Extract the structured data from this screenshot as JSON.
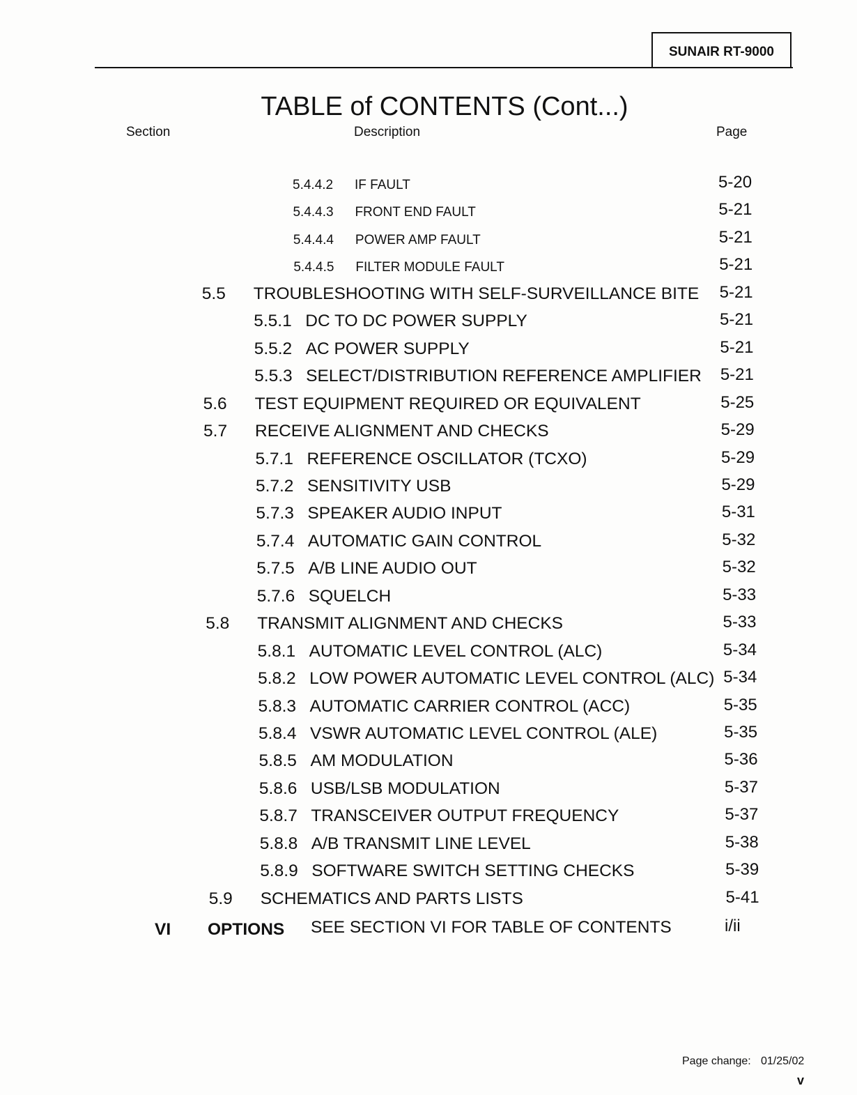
{
  "header": {
    "model": "SUNAIR RT-9000"
  },
  "title": "TABLE  of  CONTENTS (Cont...)",
  "columns": {
    "section": "Section",
    "description": "Description",
    "page": "Page"
  },
  "entries": [
    {
      "level": 3,
      "number": "5.4.4.2",
      "title": "IF FAULT",
      "page": "5-20"
    },
    {
      "level": 3,
      "number": "5.4.4.3",
      "title": "FRONT END FAULT",
      "page": "5-21"
    },
    {
      "level": 3,
      "number": "5.4.4.4",
      "title": "POWER AMP FAULT",
      "page": "5-21"
    },
    {
      "level": 3,
      "number": "5.4.4.5",
      "title": "FILTER MODULE FAULT",
      "page": "5-21"
    },
    {
      "level": 1,
      "number": "5.5",
      "title": "TROUBLESHOOTING WITH SELF-SURVEILLANCE BITE",
      "page": "5-21"
    },
    {
      "level": 2,
      "number": "5.5.1",
      "title": "DC TO DC POWER SUPPLY",
      "page": "5-21"
    },
    {
      "level": 2,
      "number": "5.5.2",
      "title": "AC POWER SUPPLY",
      "page": "5-21"
    },
    {
      "level": 2,
      "number": "5.5.3",
      "title": "SELECT/DISTRIBUTION REFERENCE AMPLIFIER",
      "page": "5-21"
    },
    {
      "level": 1,
      "number": "5.6",
      "title": "TEST EQUIPMENT REQUIRED OR EQUIVALENT",
      "page": "5-25"
    },
    {
      "level": 1,
      "number": "5.7",
      "title": "RECEIVE ALIGNMENT AND CHECKS",
      "page": "5-29"
    },
    {
      "level": 2,
      "number": "5.7.1",
      "title": "REFERENCE OSCILLATOR (TCXO)",
      "page": "5-29"
    },
    {
      "level": 2,
      "number": "5.7.2",
      "title": "SENSITIVITY USB",
      "page": "5-29"
    },
    {
      "level": 2,
      "number": "5.7.3",
      "title": "SPEAKER AUDIO INPUT",
      "page": "5-31"
    },
    {
      "level": 2,
      "number": "5.7.4",
      "title": "AUTOMATIC GAIN CONTROL",
      "page": "5-32"
    },
    {
      "level": 2,
      "number": "5.7.5",
      "title": "A/B LINE AUDIO OUT",
      "page": "5-32"
    },
    {
      "level": 2,
      "number": "5.7.6",
      "title": "SQUELCH",
      "page": "5-33"
    },
    {
      "level": 1,
      "number": "5.8",
      "title": "TRANSMIT ALIGNMENT AND CHECKS",
      "page": "5-33"
    },
    {
      "level": 2,
      "number": "5.8.1",
      "title": "AUTOMATIC LEVEL CONTROL (ALC)",
      "page": "5-34"
    },
    {
      "level": 2,
      "number": "5.8.2",
      "title": "LOW POWER AUTOMATIC LEVEL CONTROL (ALC)",
      "page": "5-34"
    },
    {
      "level": 2,
      "number": "5.8.3",
      "title": "AUTOMATIC CARRIER CONTROL (ACC)",
      "page": "5-35"
    },
    {
      "level": 2,
      "number": "5.8.4",
      "title": "VSWR AUTOMATIC LEVEL CONTROL (ALE)",
      "page": "5-35"
    },
    {
      "level": 2,
      "number": "5.8.5",
      "title": "AM MODULATION",
      "page": "5-36"
    },
    {
      "level": 2,
      "number": "5.8.6",
      "title": "USB/LSB MODULATION",
      "page": "5-37"
    },
    {
      "level": 2,
      "number": "5.8.7",
      "title": "TRANSCEIVER OUTPUT FREQUENCY",
      "page": "5-37"
    },
    {
      "level": 2,
      "number": "5.8.8",
      "title": "A/B TRANSMIT LINE LEVEL",
      "page": "5-38"
    },
    {
      "level": 2,
      "number": "5.8.9",
      "title": "SOFTWARE SWITCH SETTING CHECKS",
      "page": "5-39"
    },
    {
      "level": 1,
      "number": "5.9",
      "title": "SCHEMATICS AND PARTS LISTS",
      "page": "5-41"
    }
  ],
  "options_row": {
    "section": "VI",
    "label": "OPTIONS",
    "title": "SEE SECTION VI FOR TABLE OF CONTENTS",
    "page": "i/ii"
  },
  "footer": {
    "page_change_label": "Page change:",
    "page_change_date": "01/25/02",
    "page_number": "v"
  }
}
